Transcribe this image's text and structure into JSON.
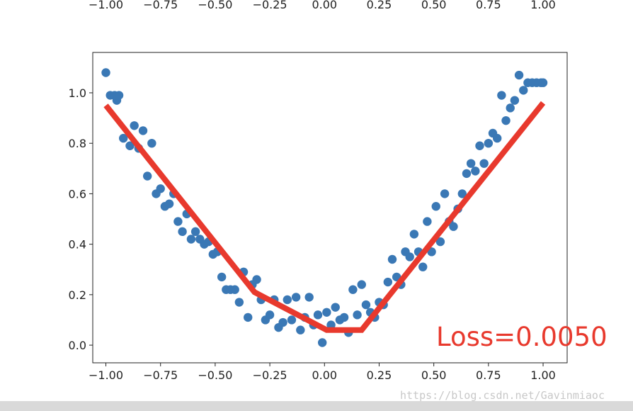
{
  "chart_data": {
    "type": "scatter",
    "xlim": [
      -1.06,
      1.11
    ],
    "ylim": [
      -0.07,
      1.16
    ],
    "x_ticks": [
      "−1.00",
      "−0.75",
      "−0.50",
      "−0.25",
      "0.00",
      "0.25",
      "0.50",
      "0.75",
      "1.00"
    ],
    "y_ticks": [
      "0.0",
      "0.2",
      "0.4",
      "0.6",
      "0.8",
      "1.0"
    ],
    "top_partial_ticks": [
      "−1.00",
      "−0.75",
      "−0.50",
      "−0.25",
      "0.00",
      "0.25",
      "0.50",
      "0.75",
      "1.00"
    ],
    "grid": false,
    "colors": {
      "points": "#3a78b5",
      "fit_line": "#e8392d",
      "annotation": "#e8392d"
    },
    "series": [
      {
        "type": "scatter",
        "x": [
          -1.0,
          -0.98,
          -0.96,
          -0.95,
          -0.94,
          -0.92,
          -0.89,
          -0.87,
          -0.85,
          -0.83,
          -0.81,
          -0.79,
          -0.77,
          -0.75,
          -0.73,
          -0.71,
          -0.69,
          -0.67,
          -0.65,
          -0.63,
          -0.61,
          -0.59,
          -0.57,
          -0.55,
          -0.53,
          -0.51,
          -0.49,
          -0.47,
          -0.45,
          -0.43,
          -0.41,
          -0.39,
          -0.37,
          -0.35,
          -0.33,
          -0.31,
          -0.29,
          -0.27,
          -0.25,
          -0.23,
          -0.21,
          -0.19,
          -0.17,
          -0.15,
          -0.13,
          -0.11,
          -0.09,
          -0.07,
          -0.05,
          -0.03,
          -0.01,
          0.01,
          0.03,
          0.05,
          0.07,
          0.09,
          0.11,
          0.13,
          0.15,
          0.17,
          0.19,
          0.21,
          0.23,
          0.25,
          0.27,
          0.29,
          0.31,
          0.33,
          0.35,
          0.37,
          0.39,
          0.41,
          0.43,
          0.45,
          0.47,
          0.49,
          0.51,
          0.53,
          0.55,
          0.57,
          0.59,
          0.61,
          0.63,
          0.65,
          0.67,
          0.69,
          0.71,
          0.73,
          0.75,
          0.77,
          0.79,
          0.81,
          0.83,
          0.85,
          0.87,
          0.89,
          0.91,
          0.93,
          0.95,
          0.97,
          0.99,
          1.0
        ],
        "y": [
          1.08,
          0.99,
          0.99,
          0.97,
          0.99,
          0.82,
          0.79,
          0.87,
          0.78,
          0.85,
          0.67,
          0.8,
          0.6,
          0.62,
          0.55,
          0.56,
          0.6,
          0.49,
          0.45,
          0.52,
          0.42,
          0.45,
          0.42,
          0.4,
          0.41,
          0.36,
          0.37,
          0.27,
          0.22,
          0.22,
          0.22,
          0.17,
          0.29,
          0.11,
          0.24,
          0.26,
          0.18,
          0.1,
          0.12,
          0.18,
          0.07,
          0.09,
          0.18,
          0.1,
          0.19,
          0.06,
          0.11,
          0.19,
          0.08,
          0.12,
          0.01,
          0.13,
          0.08,
          0.15,
          0.1,
          0.11,
          0.05,
          0.22,
          0.12,
          0.24,
          0.16,
          0.13,
          0.11,
          0.17,
          0.16,
          0.25,
          0.34,
          0.27,
          0.24,
          0.37,
          0.35,
          0.44,
          0.37,
          0.31,
          0.49,
          0.37,
          0.55,
          0.41,
          0.6,
          0.49,
          0.47,
          0.54,
          0.6,
          0.68,
          0.72,
          0.69,
          0.79,
          0.72,
          0.8,
          0.84,
          0.82,
          0.99,
          0.89,
          0.94,
          0.97,
          1.07,
          1.01,
          1.04,
          1.04,
          1.04,
          1.04,
          1.04
        ]
      },
      {
        "type": "line",
        "x": [
          -1.0,
          -0.32,
          0.01,
          0.17,
          1.0
        ],
        "y": [
          0.95,
          0.21,
          0.06,
          0.06,
          0.96
        ]
      }
    ]
  },
  "annotation": "Loss=0.0050",
  "watermark": "https://blog.csdn.net/Gavinmiaoc"
}
